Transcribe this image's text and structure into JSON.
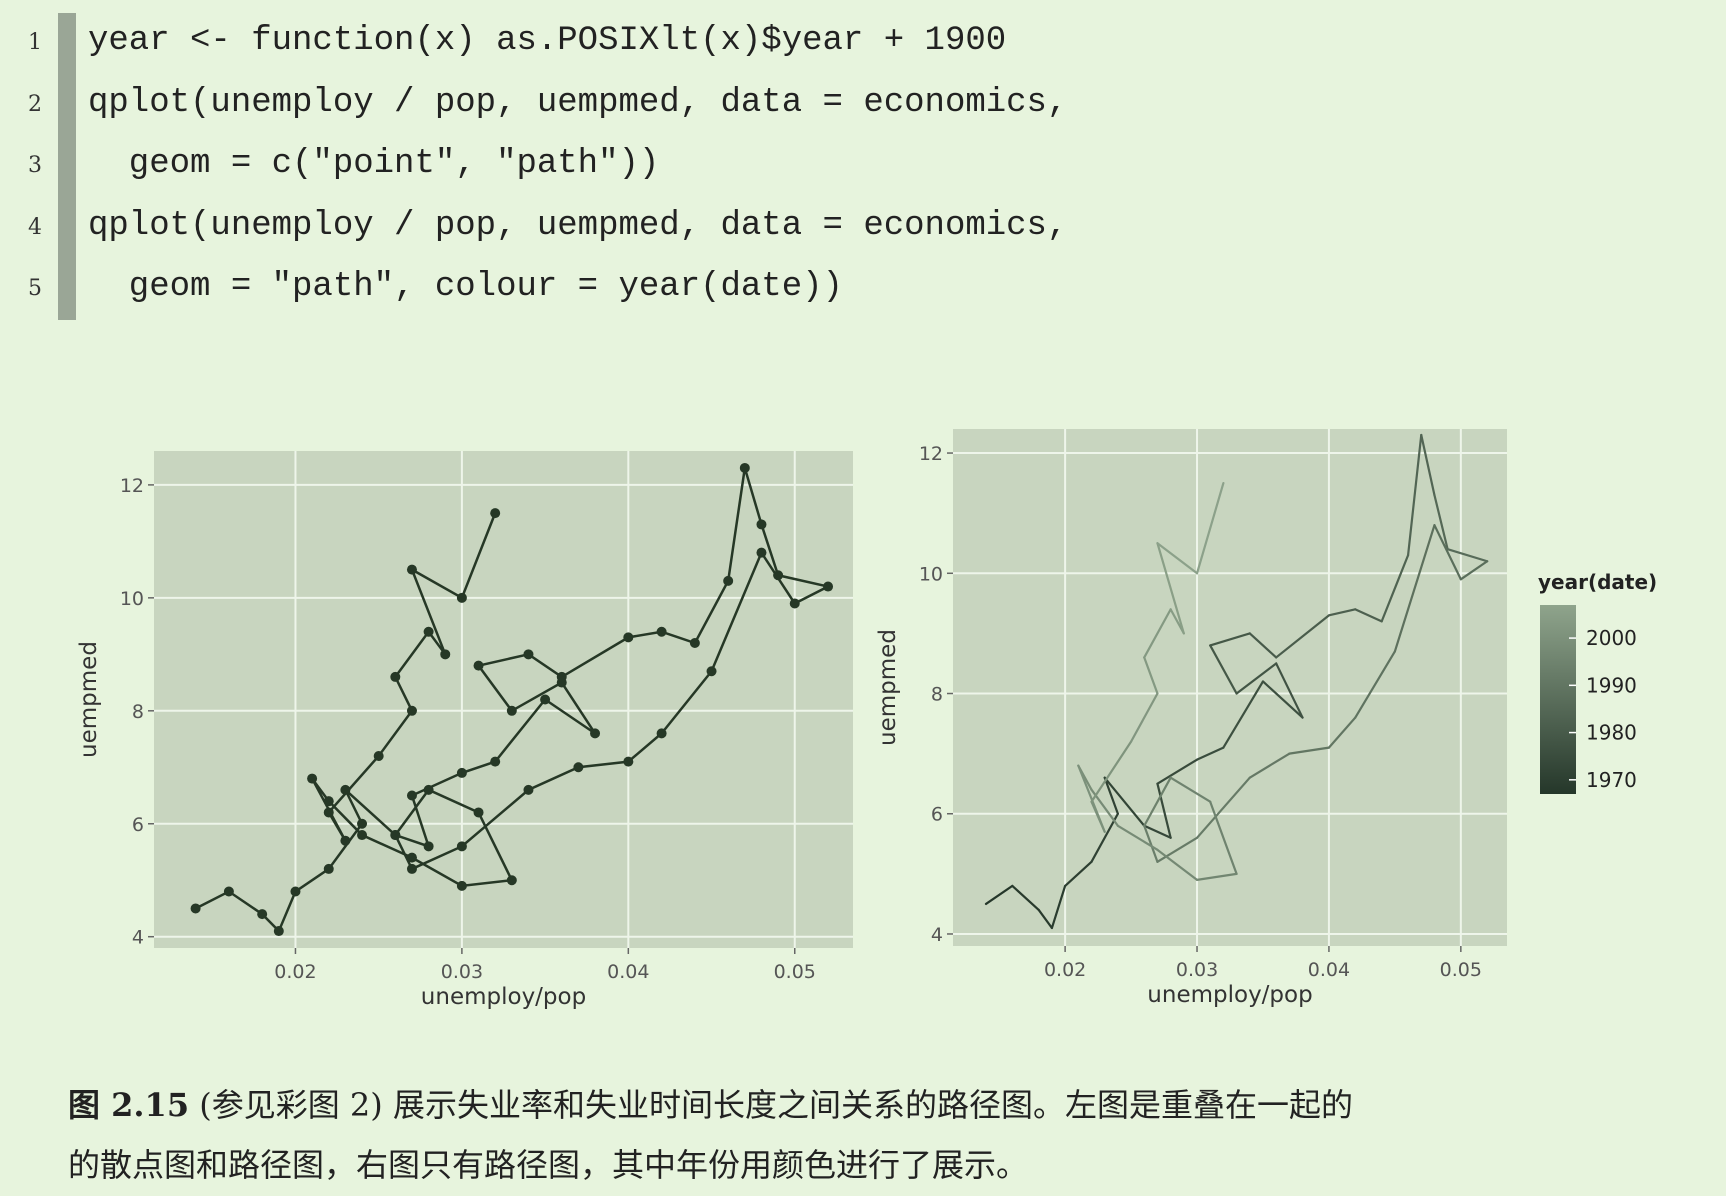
{
  "code": {
    "lines": [
      {
        "number": 1,
        "text": "year <- function(x) as.POSIXlt(x)$year + 1900"
      },
      {
        "number": 2,
        "text": "qplot(unemploy / pop, uempmed, data = economics,"
      },
      {
        "number": 3,
        "text": "  geom = c(\"point\", \"path\"))"
      },
      {
        "number": 4,
        "text": "qplot(unemploy / pop, uempmed, data = economics,"
      },
      {
        "number": 5,
        "text": "  geom = \"path\", colour = year(date))"
      }
    ]
  },
  "chart_data": [
    {
      "type": "line",
      "markers": true,
      "color": "#263826",
      "grid": true,
      "xlabel": "unemploy/pop",
      "ylabel": "uempmed",
      "xlim": [
        0.0115,
        0.0535
      ],
      "ylim": [
        3.8,
        12.6
      ],
      "xticks": [
        0.02,
        0.03,
        0.04,
        0.05
      ],
      "yticks": [
        4,
        6,
        8,
        10,
        12
      ],
      "x": [
        0.014,
        0.016,
        0.018,
        0.019,
        0.02,
        0.022,
        0.024,
        0.023,
        0.026,
        0.028,
        0.027,
        0.03,
        0.032,
        0.035,
        0.038,
        0.036,
        0.033,
        0.031,
        0.034,
        0.036,
        0.04,
        0.042,
        0.044,
        0.046,
        0.047,
        0.048,
        0.049,
        0.052,
        0.05,
        0.048,
        0.045,
        0.042,
        0.04,
        0.037,
        0.034,
        0.03,
        0.027,
        0.026,
        0.028,
        0.031,
        0.033,
        0.03,
        0.027,
        0.024,
        0.022,
        0.021,
        0.023,
        0.022,
        0.025,
        0.027,
        0.026,
        0.028,
        0.029,
        0.027,
        0.03,
        0.032
      ],
      "values": [
        4.5,
        4.8,
        4.4,
        4.1,
        4.8,
        5.2,
        6.0,
        6.6,
        5.8,
        5.6,
        6.5,
        6.9,
        7.1,
        8.2,
        7.6,
        8.5,
        8.0,
        8.8,
        9.0,
        8.6,
        9.3,
        9.4,
        9.2,
        10.3,
        12.3,
        11.3,
        10.4,
        10.2,
        9.9,
        10.8,
        8.7,
        7.6,
        7.1,
        7.0,
        6.6,
        5.6,
        5.2,
        5.8,
        6.6,
        6.2,
        5.0,
        4.9,
        5.4,
        5.8,
        6.4,
        6.8,
        5.7,
        6.2,
        7.2,
        8.0,
        8.6,
        9.4,
        9.0,
        10.5,
        10.0,
        11.5
      ]
    },
    {
      "type": "line",
      "markers": false,
      "grid": true,
      "xlabel": "unemploy/pop",
      "ylabel": "uempmed",
      "xlim": [
        0.0115,
        0.0535
      ],
      "ylim": [
        3.8,
        12.4
      ],
      "xticks": [
        0.02,
        0.03,
        0.04,
        0.05
      ],
      "yticks": [
        4,
        6,
        8,
        10,
        12
      ],
      "x": [
        0.014,
        0.016,
        0.018,
        0.019,
        0.02,
        0.022,
        0.024,
        0.023,
        0.026,
        0.028,
        0.027,
        0.03,
        0.032,
        0.035,
        0.038,
        0.036,
        0.033,
        0.031,
        0.034,
        0.036,
        0.04,
        0.042,
        0.044,
        0.046,
        0.047,
        0.048,
        0.049,
        0.052,
        0.05,
        0.048,
        0.045,
        0.042,
        0.04,
        0.037,
        0.034,
        0.03,
        0.027,
        0.026,
        0.028,
        0.031,
        0.033,
        0.03,
        0.027,
        0.024,
        0.022,
        0.021,
        0.023,
        0.022,
        0.025,
        0.027,
        0.026,
        0.028,
        0.029,
        0.027,
        0.03,
        0.032
      ],
      "values": [
        4.5,
        4.8,
        4.4,
        4.1,
        4.8,
        5.2,
        6.0,
        6.6,
        5.8,
        5.6,
        6.5,
        6.9,
        7.1,
        8.2,
        7.6,
        8.5,
        8.0,
        8.8,
        9.0,
        8.6,
        9.3,
        9.4,
        9.2,
        10.3,
        12.3,
        11.3,
        10.4,
        10.2,
        9.9,
        10.8,
        8.7,
        7.6,
        7.1,
        7.0,
        6.6,
        5.6,
        5.2,
        5.8,
        6.6,
        6.2,
        5.0,
        4.9,
        5.4,
        5.8,
        6.4,
        6.8,
        5.7,
        6.2,
        7.2,
        8.0,
        8.6,
        9.4,
        9.0,
        10.5,
        10.0,
        11.5
      ],
      "colour_values": [
        1967,
        1968,
        1968,
        1969,
        1970,
        1971,
        1971,
        1972,
        1973,
        1974,
        1974,
        1975,
        1976,
        1976,
        1977,
        1978,
        1979,
        1979,
        1980,
        1981,
        1982,
        1982,
        1983,
        1984,
        1984,
        1985,
        1986,
        1987,
        1987,
        1988,
        1989,
        1990,
        1990,
        1991,
        1992,
        1992,
        1993,
        1994,
        1995,
        1995,
        1996,
        1997,
        1998,
        1998,
        1999,
        2000,
        2000,
        2001,
        2002,
        2003,
        2003,
        2004,
        2005,
        2006,
        2006,
        2007
      ],
      "colorbar": {
        "title": "year(date)",
        "lim": [
          1967,
          2007
        ],
        "ticks": [
          1970,
          1980,
          1990,
          2000
        ],
        "low": "#25372a",
        "high": "#8fa48c"
      }
    }
  ],
  "caption": {
    "label": "图 2.15",
    "line1": "(参见彩图 2) 展示失业率和失业时间长度之间关系的路径图。左图是重叠在一起的",
    "line2": "的散点图和路径图，右图只有路径图，其中年份用颜色进行了展示。"
  }
}
